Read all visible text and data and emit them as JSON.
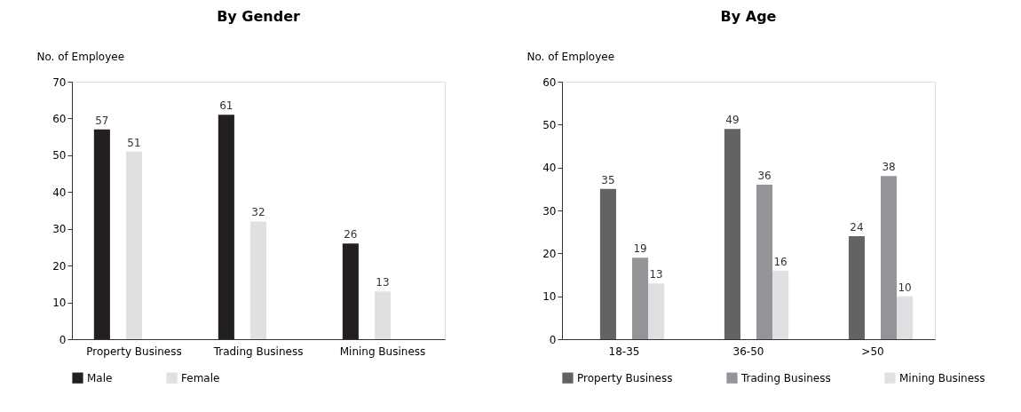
{
  "chart_data": [
    {
      "type": "bar",
      "title": "By Gender",
      "ylabel": "No. of Employee",
      "categories": [
        "Property Business",
        "Trading Business",
        "Mining Business"
      ],
      "series": [
        {
          "name": "Male",
          "color": "#231f20",
          "values": [
            57,
            61,
            26
          ]
        },
        {
          "name": "Female",
          "color": "#e0e0e2",
          "values": [
            51,
            32,
            13
          ]
        }
      ],
      "ylim": [
        0,
        70
      ],
      "yticks": [
        0,
        10,
        20,
        30,
        40,
        50,
        60,
        70
      ],
      "data_labels": true,
      "legend": "bottom",
      "grid": false
    },
    {
      "type": "bar",
      "title": "By Age",
      "ylabel": "No. of Employee",
      "categories": [
        "18-35",
        "36-50",
        ">50"
      ],
      "series": [
        {
          "name": "Property Business",
          "color": "#636365",
          "values": [
            35,
            49,
            24
          ]
        },
        {
          "name": "Trading Business",
          "color": "#939598",
          "values": [
            19,
            36,
            38
          ]
        },
        {
          "name": "Mining Business",
          "color": "#e0e0e2",
          "values": [
            13,
            16,
            10
          ]
        }
      ],
      "ylim": [
        0,
        60
      ],
      "yticks": [
        0,
        10,
        20,
        30,
        40,
        50,
        60
      ],
      "data_labels": true,
      "legend": "bottom",
      "grid": false
    }
  ]
}
